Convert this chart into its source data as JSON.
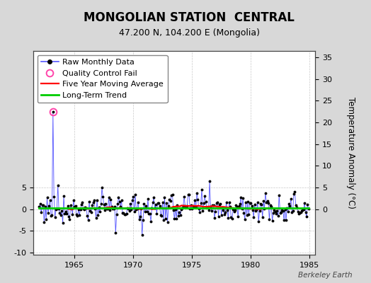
{
  "title": "MONGOLIAN STATION  CENTRAL",
  "subtitle": "47.200 N, 104.200 E (Mongolia)",
  "ylabel_right": "Temperature Anomaly (°C)",
  "watermark": "Berkeley Earth",
  "xlim": [
    1961.5,
    1985.5
  ],
  "ylim_left": [
    -10.5,
    36.5
  ],
  "ylim_right": [
    -10.5,
    36.5
  ],
  "yticks_left": [
    -10,
    -5,
    0,
    5
  ],
  "yticks_right": [
    0,
    5,
    10,
    15,
    20,
    25,
    30,
    35
  ],
  "xticks": [
    1965,
    1970,
    1975,
    1980,
    1985
  ],
  "fig_bg_color": "#d8d8d8",
  "plot_bg_color": "#ffffff",
  "grid_color": "#bbbbbb",
  "raw_line_color": "#5555ff",
  "raw_marker_color": "#000000",
  "qc_fail_color": "#ff44aa",
  "moving_avg_color": "#ff0000",
  "trend_color": "#00cc00",
  "spike_x": 1963.17,
  "spike_y": 22.5,
  "trend_y": 0.3,
  "title_fontsize": 12,
  "subtitle_fontsize": 9,
  "tick_fontsize": 8,
  "legend_fontsize": 8
}
